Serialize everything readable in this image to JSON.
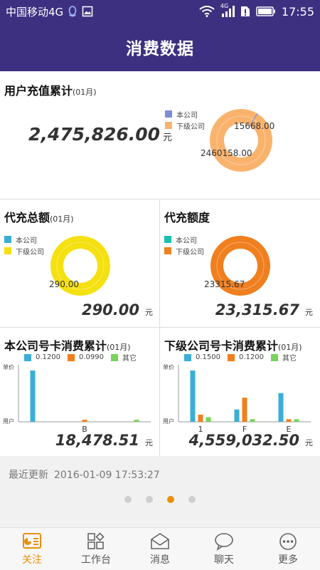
{
  "status_bar": {
    "carrier": "中国移动4G",
    "network": "4G",
    "time": "17:55"
  },
  "header": {
    "title": "消费数据"
  },
  "colors": {
    "header_bg": "#3d3080",
    "accent_orange": "#e8900c",
    "own_company_blue": "#7b8ed6",
    "sub_company_peach": "#f9b36d",
    "own_company_teal": "#1bbfb0",
    "sub_company_yellow": "#f5e010",
    "sub_company_orange": "#f07f1f",
    "bar_blue": "#3aaed8",
    "bar_orange": "#f07f1f",
    "bar_green": "#77d45a"
  },
  "recharge_total": {
    "title": "用户充值累计",
    "month": "(01月)",
    "amount": "2,475,826.00",
    "unit": "元",
    "legend": [
      "本公司",
      "下级公司"
    ],
    "slice_labels": [
      "15668.00",
      "2460158.00"
    ]
  },
  "proxy_total": {
    "title": "代充总额",
    "month": "(01月)",
    "legend": [
      "本公司",
      "下级公司"
    ],
    "slice_label": "290.00",
    "amount": "290.00",
    "unit": "元"
  },
  "proxy_quota": {
    "title": "代充额度",
    "legend": [
      "本公司",
      "下级公司"
    ],
    "slice_label": "23315.67",
    "amount": "23,315.67",
    "unit": "元"
  },
  "own_card": {
    "title": "本公司号卡消费累计",
    "month": "(01月)",
    "legend": [
      "0.1200",
      "0.0990",
      "其它"
    ],
    "y_top_label": "单价",
    "y_bottom_label": "用户",
    "categories": [
      "B"
    ],
    "amount": "18,478.51",
    "unit": "元"
  },
  "sub_card": {
    "title": "下级公司号卡消费累计",
    "month": "(01月)",
    "legend": [
      "0.1500",
      "0.1200",
      "其它"
    ],
    "y_top_label": "单价",
    "y_bottom_label": "用户",
    "categories": [
      "1",
      "F",
      "E"
    ],
    "amount": "4,559,032.50",
    "unit": "元"
  },
  "chart_data": [
    {
      "type": "pie",
      "title": "用户充值累计",
      "labels": [
        "本公司",
        "下级公司"
      ],
      "values": [
        15668.0,
        2460158.0
      ]
    },
    {
      "type": "pie",
      "title": "代充总额",
      "labels": [
        "本公司",
        "下级公司"
      ],
      "values": [
        0,
        290.0
      ]
    },
    {
      "type": "pie",
      "title": "代充额度",
      "labels": [
        "本公司",
        "下级公司"
      ],
      "values": [
        0,
        23315.67
      ]
    },
    {
      "type": "bar",
      "title": "本公司号卡消费累计",
      "categories": [
        "",
        "B",
        ""
      ],
      "series": [
        {
          "name": "0.1200",
          "values": [
            1.0,
            0,
            0
          ]
        },
        {
          "name": "0.0990",
          "values": [
            0,
            0.04,
            0
          ]
        },
        {
          "name": "其它",
          "values": [
            0,
            0,
            0.04
          ]
        }
      ]
    },
    {
      "type": "bar",
      "title": "下级公司号卡消费累计",
      "categories": [
        "1",
        "F",
        "E"
      ],
      "series": [
        {
          "name": "0.1500",
          "values": [
            1.0,
            0.24,
            0.56
          ]
        },
        {
          "name": "0.1200",
          "values": [
            0.14,
            0.47,
            0.05
          ]
        },
        {
          "name": "其它",
          "values": [
            0.09,
            0.05,
            0.05
          ]
        }
      ]
    }
  ],
  "updated": {
    "label": "最近更新",
    "timestamp": "2016-01-09 17:53:27"
  },
  "pager": {
    "count": 4,
    "active": 3
  },
  "bottom_nav": [
    {
      "label": "关注",
      "icon": "dashboard-icon",
      "active": true
    },
    {
      "label": "工作台",
      "icon": "apps-icon",
      "active": false
    },
    {
      "label": "消息",
      "icon": "mail-icon",
      "active": false
    },
    {
      "label": "聊天",
      "icon": "chat-bubble-icon",
      "active": false
    },
    {
      "label": "更多",
      "icon": "more-dots-icon",
      "active": false
    }
  ]
}
